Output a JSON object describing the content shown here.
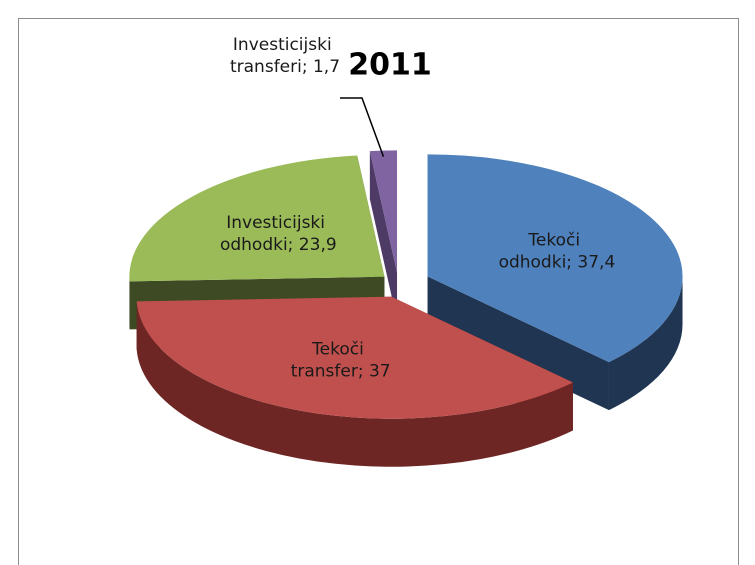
{
  "chart_data": {
    "type": "pie3d",
    "title": "2011",
    "values": [
      37.4,
      37,
      23.9,
      1.7
    ],
    "value_labels": [
      "Tekoči odhodki; 37,4",
      "Tekoči transfer; 37",
      "Investicijski odhodki; 23,9",
      "Investicijski transferi; 1,7"
    ],
    "colors": [
      "#4f81bd",
      "#c0504d",
      "#9bbb59",
      "#8064a2"
    ],
    "side_colors": [
      "#1f3552",
      "#6e2624",
      "#3d4a24",
      "#4d3b66"
    ]
  }
}
